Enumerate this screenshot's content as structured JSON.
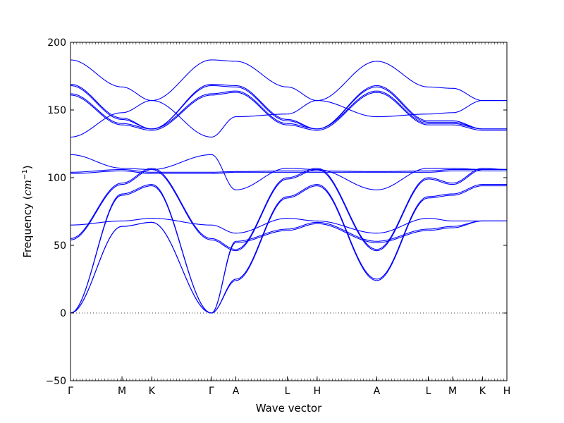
{
  "chart_data": {
    "type": "line",
    "xlabel": "Wave vector",
    "ylabel_text": "Frequency (",
    "ylabel_unit": "cm",
    "ylabel_exp": "−1",
    "ylabel_close": ")",
    "ylim": [
      -50,
      200
    ],
    "yticks": [
      -50,
      0,
      50,
      100,
      150,
      200
    ],
    "x_tick_labels": [
      "Γ",
      "M",
      "K",
      "Γ",
      "A",
      "L",
      "H",
      "A",
      "L",
      "M",
      "K",
      "H"
    ],
    "x_tick_values": [
      0,
      0.38,
      0.6,
      1.04,
      1.22,
      1.6,
      1.82,
      2.26,
      2.64,
      2.82,
      3.04,
      3.22
    ],
    "xlim": [
      0,
      3.22
    ],
    "zero_line": true,
    "line_color": "#0000ff",
    "series": [
      {
        "points": [
          [
            0,
            187
          ],
          [
            0.38,
            167
          ],
          [
            0.6,
            157
          ],
          [
            1.04,
            187
          ],
          [
            1.22,
            186
          ],
          [
            1.6,
            167
          ],
          [
            1.82,
            157
          ],
          [
            2.26,
            186
          ],
          [
            2.64,
            167
          ],
          [
            2.82,
            166
          ],
          [
            3.04,
            157
          ],
          [
            3.22,
            157
          ]
        ]
      },
      {
        "points": [
          [
            0,
            169
          ],
          [
            0.38,
            144
          ],
          [
            0.6,
            136
          ],
          [
            1.04,
            169
          ],
          [
            1.22,
            168
          ],
          [
            1.6,
            143
          ],
          [
            1.82,
            136
          ],
          [
            2.26,
            168
          ],
          [
            2.64,
            142
          ],
          [
            2.82,
            142
          ],
          [
            3.04,
            136
          ],
          [
            3.22,
            136
          ]
        ]
      },
      {
        "points": [
          [
            0,
            168
          ],
          [
            0.38,
            143
          ],
          [
            0.6,
            136
          ],
          [
            1.04,
            168
          ],
          [
            1.22,
            167
          ],
          [
            1.6,
            142
          ],
          [
            1.82,
            136
          ],
          [
            2.26,
            167
          ],
          [
            2.64,
            141
          ],
          [
            2.82,
            141
          ],
          [
            3.04,
            136
          ],
          [
            3.22,
            136
          ]
        ]
      },
      {
        "points": [
          [
            0,
            162
          ],
          [
            0.38,
            140
          ],
          [
            0.6,
            136
          ],
          [
            1.04,
            162
          ],
          [
            1.22,
            164
          ],
          [
            1.6,
            140
          ],
          [
            1.82,
            136
          ],
          [
            2.26,
            164
          ],
          [
            2.64,
            140
          ],
          [
            2.82,
            140
          ],
          [
            3.04,
            136
          ],
          [
            3.22,
            136
          ]
        ]
      },
      {
        "points": [
          [
            0,
            161
          ],
          [
            0.38,
            139
          ],
          [
            0.6,
            135
          ],
          [
            1.04,
            161
          ],
          [
            1.22,
            163
          ],
          [
            1.6,
            139
          ],
          [
            1.82,
            135
          ],
          [
            2.26,
            163
          ],
          [
            2.64,
            139
          ],
          [
            2.82,
            139
          ],
          [
            3.04,
            135
          ],
          [
            3.22,
            135
          ]
        ]
      },
      {
        "points": [
          [
            0,
            130
          ],
          [
            0.38,
            148
          ],
          [
            0.6,
            157
          ],
          [
            1.04,
            130
          ],
          [
            1.22,
            145
          ],
          [
            1.6,
            147
          ],
          [
            1.82,
            157
          ],
          [
            2.26,
            145
          ],
          [
            2.64,
            147
          ],
          [
            2.82,
            148
          ],
          [
            3.04,
            157
          ],
          [
            3.22,
            157
          ]
        ]
      },
      {
        "points": [
          [
            0,
            117
          ],
          [
            0.38,
            107
          ],
          [
            0.6,
            106
          ],
          [
            1.04,
            117
          ],
          [
            1.22,
            91
          ],
          [
            1.6,
            107
          ],
          [
            1.82,
            106
          ],
          [
            2.26,
            91
          ],
          [
            2.64,
            107
          ],
          [
            2.82,
            107
          ],
          [
            3.04,
            106
          ],
          [
            3.22,
            106
          ]
        ]
      },
      {
        "points": [
          [
            0,
            104
          ],
          [
            0.38,
            106
          ],
          [
            0.6,
            104
          ],
          [
            1.04,
            104
          ],
          [
            1.22,
            104.5
          ],
          [
            1.6,
            105
          ],
          [
            1.82,
            105
          ],
          [
            2.26,
            104.5
          ],
          [
            2.64,
            105
          ],
          [
            2.82,
            106
          ],
          [
            3.04,
            106
          ],
          [
            3.22,
            106
          ]
        ]
      },
      {
        "points": [
          [
            0,
            103
          ],
          [
            0.38,
            105
          ],
          [
            0.6,
            103
          ],
          [
            1.04,
            103
          ],
          [
            1.22,
            104
          ],
          [
            1.6,
            104
          ],
          [
            1.82,
            104
          ],
          [
            2.26,
            104
          ],
          [
            2.64,
            104
          ],
          [
            2.82,
            105
          ],
          [
            3.04,
            105
          ],
          [
            3.22,
            105
          ]
        ]
      },
      {
        "points": [
          [
            0,
            55
          ],
          [
            0.38,
            96
          ],
          [
            0.6,
            107
          ],
          [
            1.04,
            55
          ],
          [
            1.22,
            47
          ],
          [
            1.6,
            100
          ],
          [
            1.82,
            107
          ],
          [
            2.26,
            47
          ],
          [
            2.64,
            100
          ],
          [
            2.82,
            96
          ],
          [
            3.04,
            107
          ],
          [
            3.22,
            106
          ]
        ]
      },
      {
        "points": [
          [
            0,
            54
          ],
          [
            0.38,
            95
          ],
          [
            0.6,
            106
          ],
          [
            1.04,
            54
          ],
          [
            1.22,
            46
          ],
          [
            1.6,
            99
          ],
          [
            1.82,
            106
          ],
          [
            2.26,
            46
          ],
          [
            2.64,
            99
          ],
          [
            2.82,
            95
          ],
          [
            3.04,
            106
          ],
          [
            3.22,
            106
          ]
        ]
      },
      {
        "points": [
          [
            0,
            0
          ],
          [
            0.38,
            88
          ],
          [
            0.6,
            95
          ],
          [
            1.04,
            0
          ],
          [
            1.22,
            25
          ],
          [
            1.6,
            86
          ],
          [
            1.82,
            95
          ],
          [
            2.26,
            25
          ],
          [
            2.64,
            86
          ],
          [
            2.82,
            88
          ],
          [
            3.04,
            95
          ],
          [
            3.22,
            95
          ]
        ]
      },
      {
        "points": [
          [
            0,
            0
          ],
          [
            0.38,
            87
          ],
          [
            0.6,
            94
          ],
          [
            1.04,
            0
          ],
          [
            1.22,
            24
          ],
          [
            1.6,
            85
          ],
          [
            1.82,
            94
          ],
          [
            2.26,
            24
          ],
          [
            2.64,
            85
          ],
          [
            2.82,
            87
          ],
          [
            3.04,
            94
          ],
          [
            3.22,
            94
          ]
        ]
      },
      {
        "points": [
          [
            0,
            65
          ],
          [
            0.38,
            68
          ],
          [
            0.6,
            70
          ],
          [
            1.04,
            65
          ],
          [
            1.22,
            59
          ],
          [
            1.6,
            70
          ],
          [
            1.82,
            68
          ],
          [
            2.26,
            59
          ],
          [
            2.64,
            70
          ],
          [
            2.82,
            68
          ],
          [
            3.04,
            68
          ],
          [
            3.22,
            68
          ]
        ]
      },
      {
        "points": [
          [
            0,
            0
          ],
          [
            0.38,
            64
          ],
          [
            0.6,
            67
          ],
          [
            1.04,
            0
          ],
          [
            1.22,
            53
          ],
          [
            1.6,
            62
          ],
          [
            1.82,
            67
          ],
          [
            2.26,
            53
          ],
          [
            2.64,
            62
          ],
          [
            2.82,
            64
          ],
          [
            3.04,
            68
          ],
          [
            3.22,
            68
          ]
        ]
      },
      {
        "points": [
          [
            0,
            0
          ],
          [
            0.38,
            64
          ],
          [
            0.6,
            67
          ],
          [
            1.04,
            0
          ],
          [
            1.22,
            52
          ],
          [
            1.6,
            61
          ],
          [
            1.82,
            66
          ],
          [
            2.26,
            52
          ],
          [
            2.64,
            61
          ],
          [
            2.82,
            63
          ],
          [
            3.04,
            68
          ],
          [
            3.22,
            68
          ]
        ]
      }
    ]
  }
}
